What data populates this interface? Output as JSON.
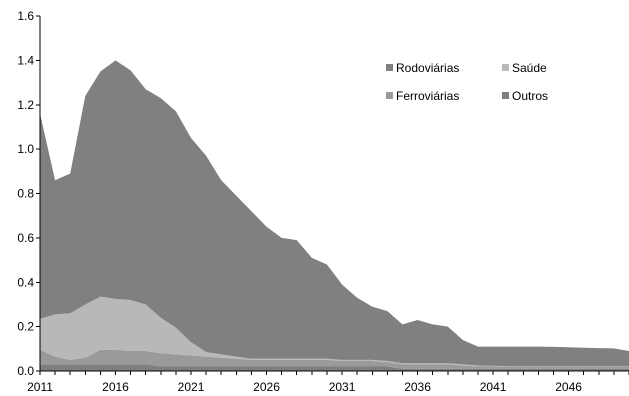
{
  "chart_data": {
    "type": "area",
    "stacked": true,
    "x": [
      2011,
      2012,
      2013,
      2014,
      2015,
      2016,
      2017,
      2018,
      2019,
      2020,
      2021,
      2022,
      2023,
      2024,
      2025,
      2026,
      2027,
      2028,
      2029,
      2030,
      2031,
      2032,
      2033,
      2034,
      2035,
      2036,
      2037,
      2038,
      2039,
      2040,
      2041,
      2042,
      2043,
      2044,
      2045,
      2046,
      2047,
      2048,
      2049,
      2050
    ],
    "series": [
      {
        "name": "Outros",
        "color": "#7f7f7f",
        "values": [
          0.03,
          0.03,
          0.03,
          0.03,
          0.03,
          0.03,
          0.03,
          0.03,
          0.02,
          0.02,
          0.02,
          0.02,
          0.02,
          0.02,
          0.02,
          0.02,
          0.02,
          0.02,
          0.02,
          0.02,
          0.02,
          0.02,
          0.02,
          0.02,
          0.01,
          0.01,
          0.01,
          0.01,
          0.01,
          0.01,
          0.01,
          0.01,
          0.01,
          0.01,
          0.01,
          0.01,
          0.01,
          0.01,
          0.01,
          0.01
        ]
      },
      {
        "name": "Ferroviárias",
        "color": "#9a9a9a",
        "values": [
          0.065,
          0.035,
          0.02,
          0.03,
          0.065,
          0.065,
          0.06,
          0.06,
          0.06,
          0.055,
          0.05,
          0.045,
          0.04,
          0.035,
          0.03,
          0.03,
          0.03,
          0.03,
          0.03,
          0.03,
          0.025,
          0.025,
          0.025,
          0.02,
          0.02,
          0.02,
          0.02,
          0.02,
          0.015,
          0.01,
          0.01,
          0.008,
          0.008,
          0.008,
          0.008,
          0.008,
          0.008,
          0.008,
          0.008,
          0.008
        ]
      },
      {
        "name": "Saúde",
        "color": "#b8b8b8",
        "values": [
          0.14,
          0.19,
          0.21,
          0.24,
          0.24,
          0.23,
          0.23,
          0.21,
          0.16,
          0.12,
          0.06,
          0.02,
          0.015,
          0.01,
          0.005,
          0.005,
          0.005,
          0.005,
          0.005,
          0.005,
          0.005,
          0.005,
          0.005,
          0.005,
          0.005,
          0.005,
          0.005,
          0.005,
          0.005,
          0.005,
          0.003,
          0.003,
          0.003,
          0.003,
          0.003,
          0.003,
          0.003,
          0.003,
          0.003,
          0.003
        ]
      },
      {
        "name": "Rodoviárias",
        "color": "#808080",
        "values": [
          0.925,
          0.605,
          0.63,
          0.94,
          1.015,
          1.075,
          1.035,
          0.97,
          0.99,
          0.975,
          0.92,
          0.885,
          0.785,
          0.725,
          0.665,
          0.595,
          0.545,
          0.535,
          0.455,
          0.425,
          0.34,
          0.28,
          0.24,
          0.225,
          0.175,
          0.195,
          0.175,
          0.165,
          0.11,
          0.085,
          0.087,
          0.089,
          0.089,
          0.089,
          0.088,
          0.086,
          0.084,
          0.082,
          0.081,
          0.069
        ]
      }
    ],
    "stack_order": [
      "Outros",
      "Ferroviárias",
      "Saúde",
      "Rodoviárias"
    ],
    "xlim": [
      2011,
      2050
    ],
    "ylim": [
      0,
      1.6
    ],
    "x_ticks": [
      "2011",
      "2016",
      "2021",
      "2026",
      "2031",
      "2036",
      "2041",
      "2046"
    ],
    "y_ticks": [
      "0.0",
      "0.2",
      "0.4",
      "0.6",
      "0.8",
      "1.0",
      "1.2",
      "1.4",
      "1.6"
    ],
    "legend": {
      "position": "top-right",
      "entries": [
        {
          "label": "Rodoviárias",
          "color": "#808080"
        },
        {
          "label": "Saúde",
          "color": "#b8b8b8"
        },
        {
          "label": "Ferroviárias",
          "color": "#9a9a9a"
        },
        {
          "label": "Outros",
          "color": "#7f7f7f"
        }
      ]
    },
    "title": "",
    "xlabel": "",
    "ylabel": "",
    "grid": false
  }
}
